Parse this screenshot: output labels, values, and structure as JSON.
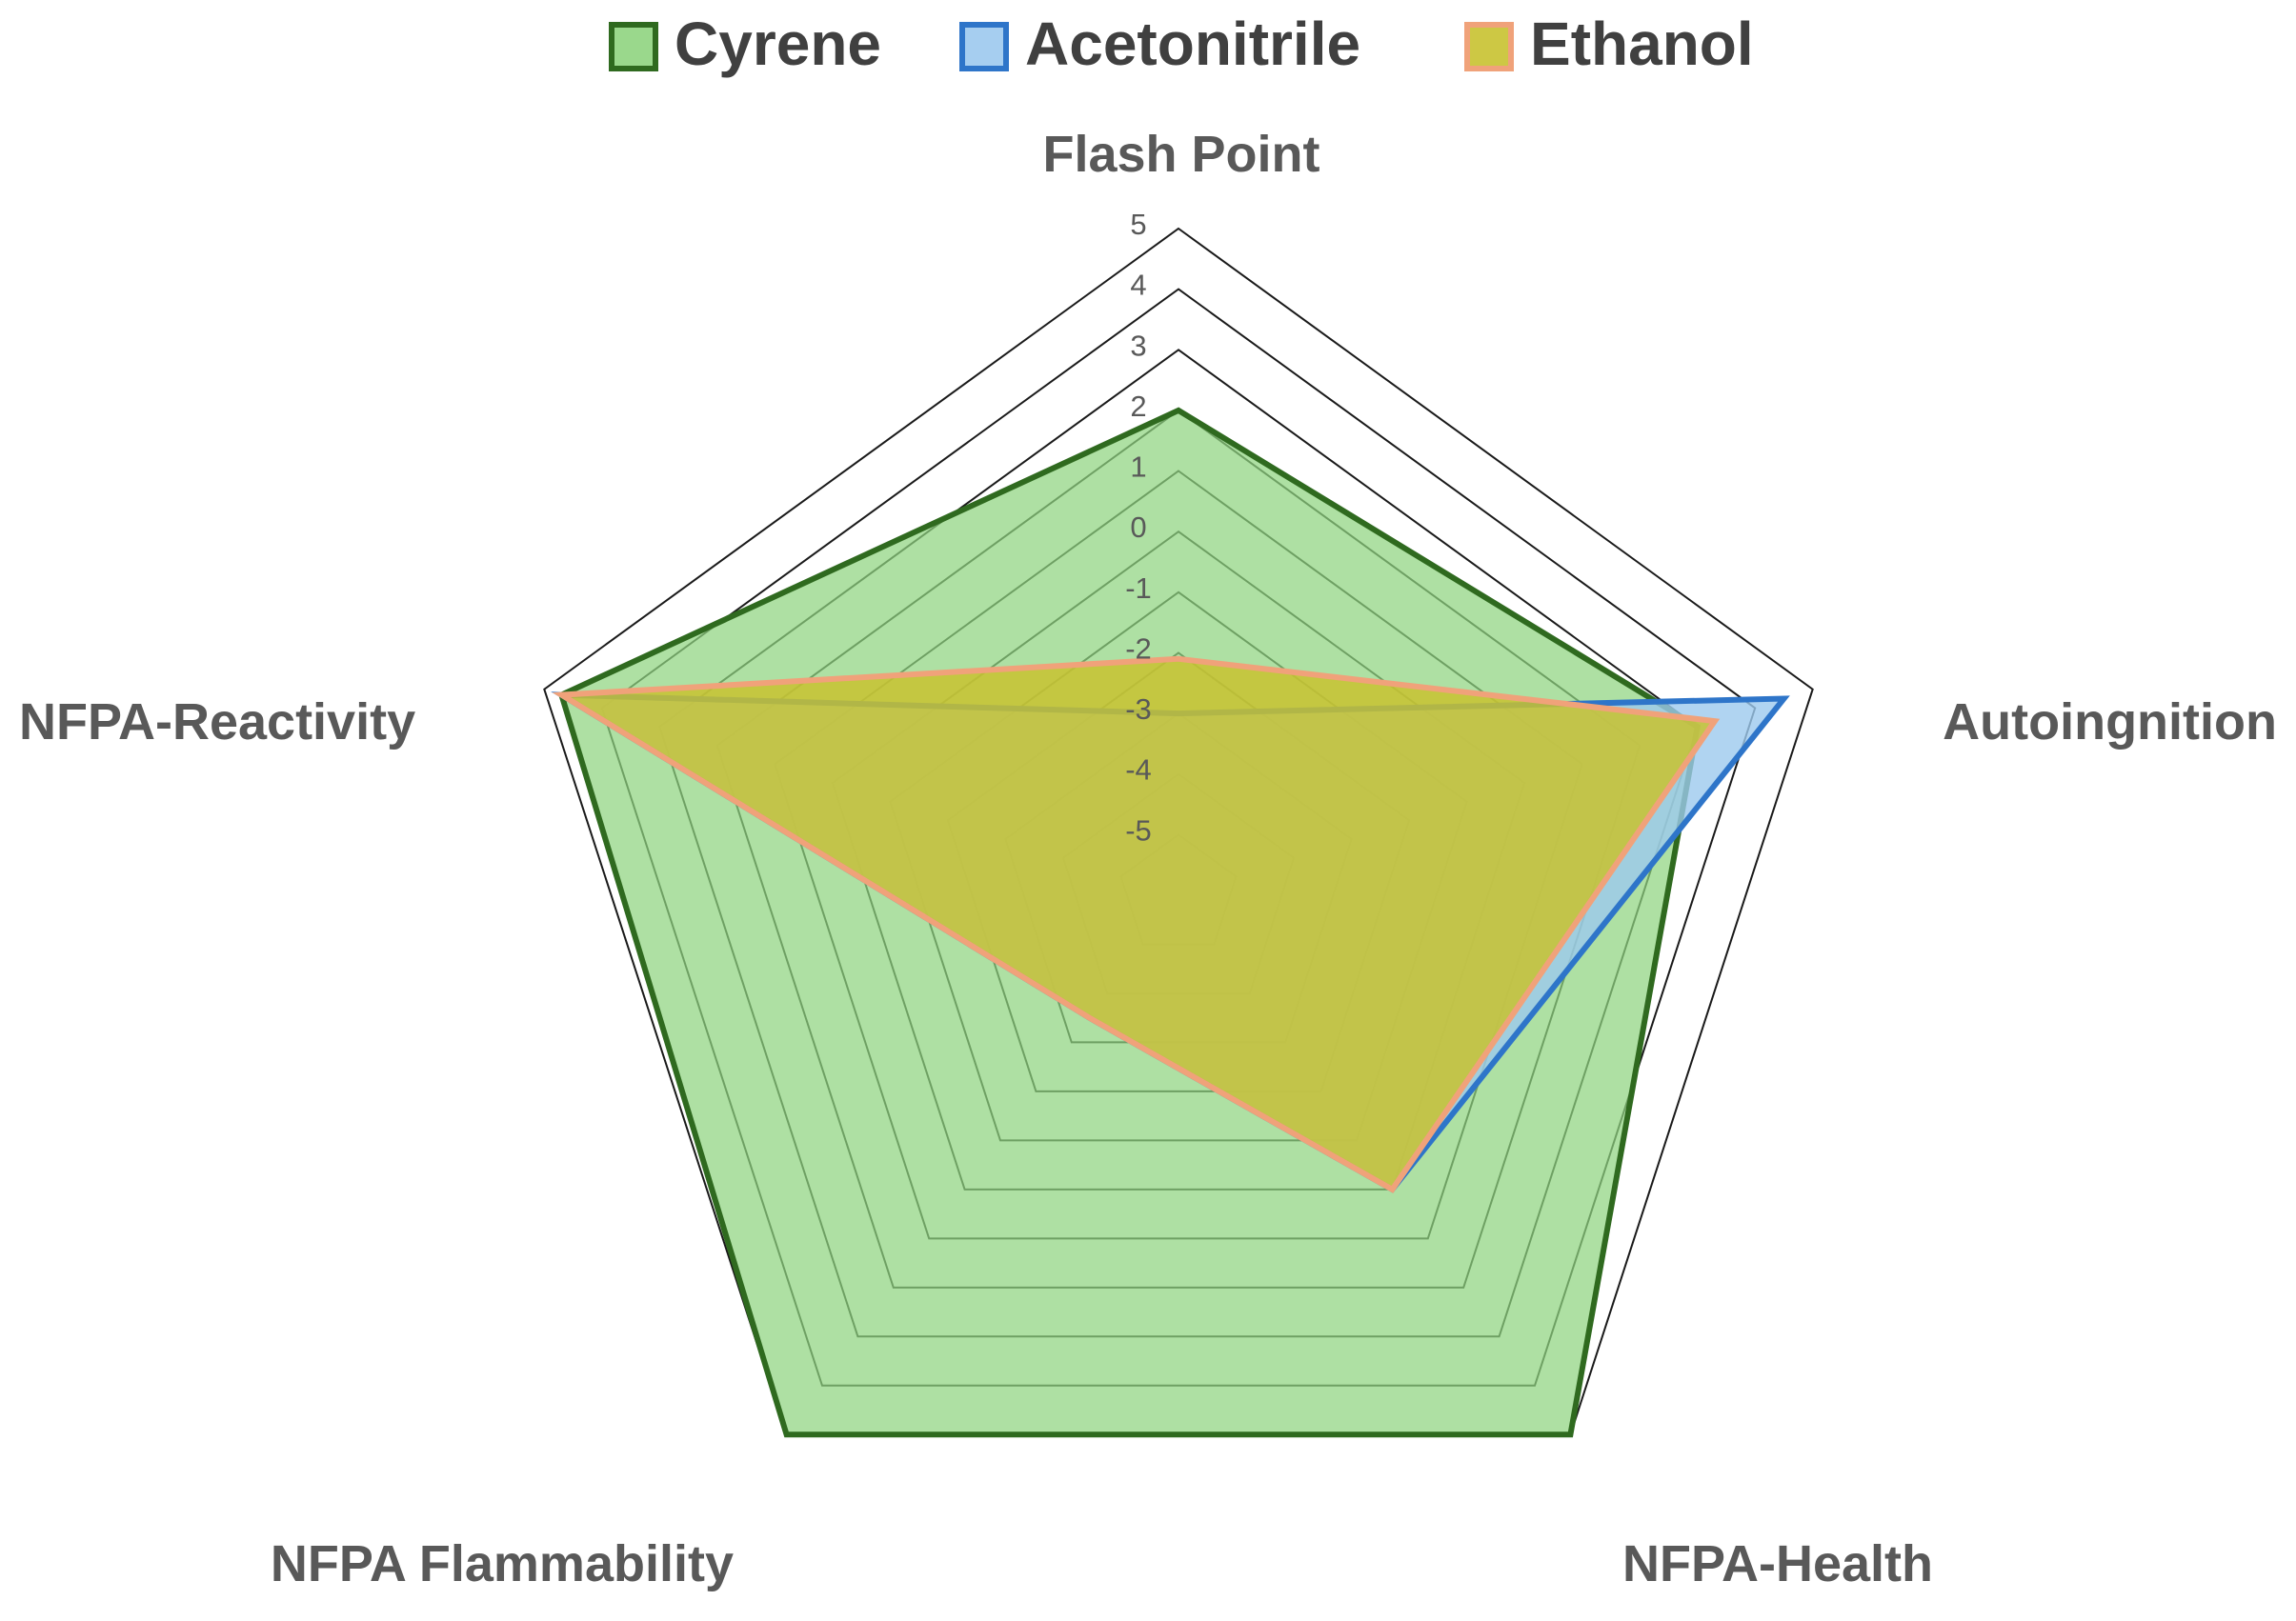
{
  "chart_data": {
    "type": "radar",
    "title": "",
    "axes": [
      "Flash Point",
      "Autoingnition",
      "NFPA-Health",
      "NFPA Flammability",
      "NFPA-Reactivity"
    ],
    "rlim": [
      -6,
      5
    ],
    "ticks": [
      "-5",
      "-4",
      "-3",
      "-2",
      "-1",
      "0",
      "1",
      "2",
      "3",
      "4",
      "5"
    ],
    "legend_position": "top",
    "grid": true,
    "series": [
      {
        "name": "Cyrene",
        "values": [
          2,
          3,
          5,
          5,
          4.7
        ],
        "stroke": "#2f6a1f",
        "fill": "#8fd47f",
        "fill_opacity": 0.72
      },
      {
        "name": "Acetonitrile",
        "values": [
          -3,
          4.5,
          0,
          -3.5,
          4.7
        ],
        "stroke": "#2e75c9",
        "fill": "#9cc9ee",
        "fill_opacity": 0.8
      },
      {
        "name": "Ethanol",
        "values": [
          -2.1,
          3.3,
          0,
          -3.5,
          4.7
        ],
        "stroke": "#f0a27a",
        "fill": "#c8c230",
        "fill_opacity": 0.85
      }
    ]
  }
}
